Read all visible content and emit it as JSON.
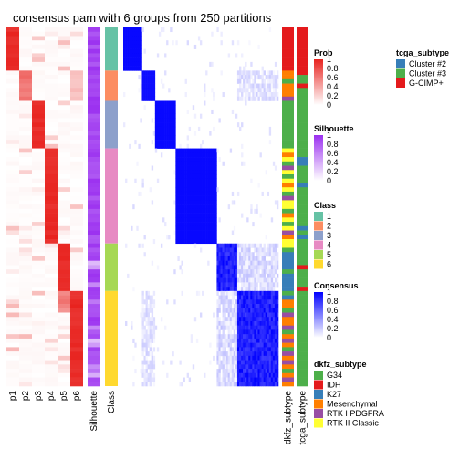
{
  "chart_data": {
    "type": "heatmap",
    "title": "consensus pam with 6 groups from 250 partitions",
    "columns": [
      "p1",
      "p2",
      "p3",
      "p4",
      "p5",
      "p6",
      "Silhouette",
      "Class",
      "dkfz_subtype",
      "tcga_subtype"
    ],
    "group_sizes": [
      10,
      7,
      11,
      22,
      11,
      22
    ],
    "prob_legend": {
      "title": "Prob",
      "ticks": [
        "1",
        "0.8",
        "0.6",
        "0.4",
        "0.2",
        "0"
      ],
      "low": "#ffffff",
      "high": "#e8231f"
    },
    "silhouette_legend": {
      "title": "Silhouette",
      "ticks": [
        "1",
        "0.8",
        "0.6",
        "0.4",
        "0.2",
        "0"
      ],
      "low": "#ffffff",
      "high": "#9b30f0"
    },
    "class_legend": {
      "title": "Class",
      "items": [
        {
          "label": "1",
          "color": "#66c2a5"
        },
        {
          "label": "2",
          "color": "#fc8d62"
        },
        {
          "label": "3",
          "color": "#8da0cb"
        },
        {
          "label": "4",
          "color": "#e78ac3"
        },
        {
          "label": "5",
          "color": "#a6d854"
        },
        {
          "label": "6",
          "color": "#ffd92f"
        }
      ]
    },
    "consensus_legend": {
      "title": "Consensus",
      "ticks": [
        "1",
        "0.8",
        "0.6",
        "0.4",
        "0.2",
        "0"
      ],
      "low": "#ffffff",
      "high": "#0000ff"
    },
    "dkfz_legend": {
      "title": "dkfz_subtype",
      "items": [
        {
          "label": "G34",
          "color": "#4daf4a"
        },
        {
          "label": "IDH",
          "color": "#e41a1c"
        },
        {
          "label": "K27",
          "color": "#377eb8"
        },
        {
          "label": "Mesenchymal",
          "color": "#ff7f00"
        },
        {
          "label": "RTK I PDGFRA",
          "color": "#984ea3"
        },
        {
          "label": "RTK II Classic",
          "color": "#ffff33"
        }
      ]
    },
    "tcga_legend": {
      "title": "tcga_subtype",
      "items": [
        {
          "label": "Cluster #2",
          "color": "#377eb8"
        },
        {
          "label": "Cluster #3",
          "color": "#4daf4a"
        },
        {
          "label": "G-CIMP+",
          "color": "#e41a1c"
        }
      ]
    }
  }
}
